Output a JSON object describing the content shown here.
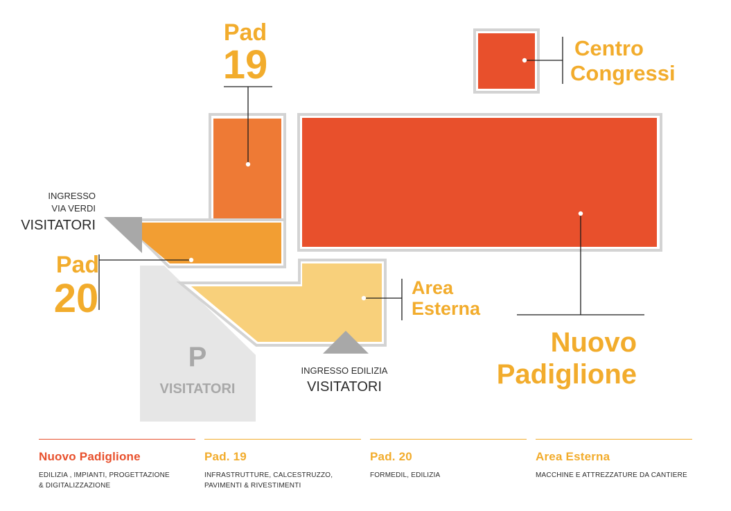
{
  "colors": {
    "nuovo": "#e8502c",
    "pad19": "#ee7a35",
    "pad20": "#f29e33",
    "area": "#f8d07b",
    "parking": "#e6e6e6",
    "accent": "#f2ac2c",
    "border": "#d3d3d3",
    "entrance": "#a8a8a8"
  },
  "labels": {
    "pad19_line1": "Pad",
    "pad19_line2": "19",
    "pad20_line1": "Pad",
    "pad20_line2": "20",
    "centro_line1": "Centro",
    "centro_line2": "Congressi",
    "area_line1": "Area",
    "area_line2": "Esterna",
    "nuovo_line1": "Nuovo",
    "nuovo_line2": "Padiglione",
    "parking_p": "P",
    "parking_text": "VISITATORI",
    "entrance_verdi_line1": "INGRESSO",
    "entrance_verdi_line2": "VIA VERDI",
    "entrance_verdi_line3": "VISITATORI",
    "entrance_edilizia_line1": "INGRESSO EDILIZIA",
    "entrance_edilizia_line2": "VISITATORI"
  },
  "legend": [
    {
      "title": "Nuovo Padiglione",
      "color": "#e8502c",
      "desc_line1": "EDILIZIA , IMPIANTI, PROGETTAZIONE",
      "desc_line2": "& DIGITALIZZAZIONE"
    },
    {
      "title": "Pad. 19",
      "color": "#f2ac2c",
      "desc_line1": "INFRASTRUTTURE, CALCESTRUZZO,",
      "desc_line2": "PAVIMENTI & RIVESTIMENTI"
    },
    {
      "title": "Pad. 20",
      "color": "#f2ac2c",
      "desc_line1": "FORMEDIL, EDILIZIA",
      "desc_line2": ""
    },
    {
      "title": "Area Esterna",
      "color": "#f2ac2c",
      "desc_line1": "MACCHINE E ATTREZZATURE DA CANTIERE",
      "desc_line2": ""
    }
  ]
}
